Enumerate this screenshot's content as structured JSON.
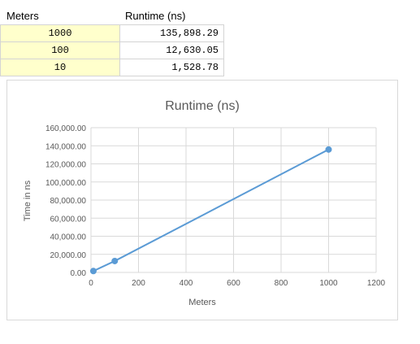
{
  "table": {
    "headers": [
      "Meters",
      "Runtime (ns)"
    ],
    "rows": [
      {
        "meters": "1000",
        "runtime": "135,898.29"
      },
      {
        "meters": "100",
        "runtime": "12,630.05"
      },
      {
        "meters": "10",
        "runtime": "1,528.78"
      }
    ]
  },
  "chart_data": {
    "type": "scatter",
    "title": "Runtime (ns)",
    "xlabel": "Meters",
    "ylabel": "Time in ns",
    "x": [
      10,
      100,
      1000
    ],
    "series": [
      {
        "values": [
          1528.78,
          12630.05,
          135898.29
        ]
      }
    ],
    "xlim": [
      0,
      1200
    ],
    "ylim": [
      0,
      160000
    ],
    "xticks": [
      "0",
      "200",
      "400",
      "600",
      "800",
      "1000",
      "1200"
    ],
    "yticks": [
      "0.00",
      "20,000.00",
      "40,000.00",
      "60,000.00",
      "80,000.00",
      "100,000.00",
      "120,000.00",
      "140,000.00",
      "160,000.00"
    ],
    "grid": true,
    "line_color": "#5b9bd5"
  }
}
